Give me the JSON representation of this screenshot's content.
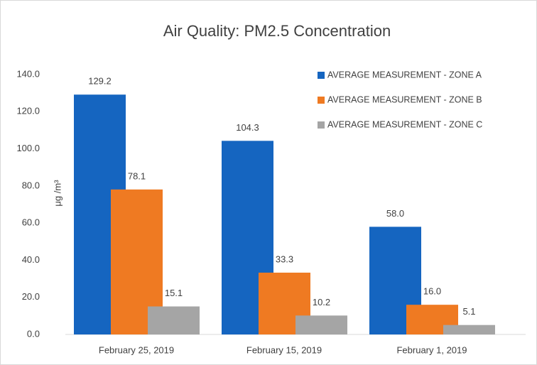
{
  "chart_data": {
    "type": "bar",
    "title": "Air Quality: PM2.5 Concentration",
    "y_label": "μg /m³",
    "categories": [
      "February 25, 2019",
      "February 15, 2019",
      "February 1, 2019"
    ],
    "series": [
      {
        "name": "AVERAGE MEASUREMENT - ZONE A",
        "color": "#1565c0",
        "values": [
          129.2,
          104.3,
          58.0
        ],
        "value_labels": [
          "129.2",
          "104.3",
          "58.0"
        ]
      },
      {
        "name": "AVERAGE MEASUREMENT - ZONE B",
        "color": "#ef7a22",
        "values": [
          78.1,
          33.3,
          16.0
        ],
        "value_labels": [
          "78.1",
          "33.3",
          "16.0"
        ]
      },
      {
        "name": "AVERAGE MEASUREMENT - ZONE C",
        "color": "#a5a5a5",
        "values": [
          15.1,
          10.2,
          5.1
        ],
        "value_labels": [
          "15.1",
          "10.2",
          "5.1"
        ]
      }
    ],
    "ylim": [
      0,
      140
    ],
    "yticks": [
      {
        "value": 0,
        "label": "0.0"
      },
      {
        "value": 20,
        "label": "20.0"
      },
      {
        "value": 40,
        "label": "40.0"
      },
      {
        "value": 60,
        "label": "60.0"
      },
      {
        "value": 80,
        "label": "80.0"
      },
      {
        "value": 100,
        "label": "100.0"
      },
      {
        "value": 120,
        "label": "120.0"
      },
      {
        "value": 140,
        "label": "140.0"
      }
    ],
    "legend": "top-right"
  }
}
